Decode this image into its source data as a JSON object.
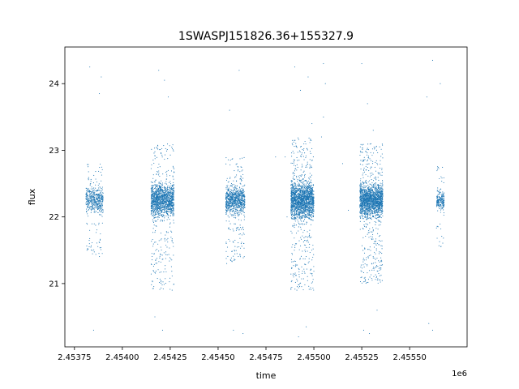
{
  "chart_data": {
    "type": "scatter",
    "title": "1SWASPJ151826.36+155327.9",
    "xlabel": "time",
    "ylabel": "flux",
    "x_offset_label": "1e6",
    "xlim": [
      2.4537,
      2.4558
    ],
    "ylim": [
      20.05,
      24.55
    ],
    "x_ticks": [
      2.45375,
      2.454,
      2.45425,
      2.4545,
      2.45475,
      2.455,
      2.45525,
      2.4555
    ],
    "x_tick_labels": [
      "2.45375",
      "2.45400",
      "2.45425",
      "2.45450",
      "2.45475",
      "2.45500",
      "2.45525",
      "2.45550"
    ],
    "y_ticks": [
      21,
      22,
      23,
      24
    ],
    "y_tick_labels": [
      "21",
      "22",
      "23",
      "24"
    ],
    "grid": false,
    "marker_color": "#1f77b4",
    "series": [
      {
        "clusters": [
          {
            "x_range": [
              2.45381,
              2.4539
            ],
            "core": [
              21.95,
              22.55
            ],
            "wide": [
              21.4,
              22.8
            ],
            "n": 520
          },
          {
            "x_range": [
              2.45415,
              2.45427
            ],
            "core": [
              21.85,
              22.65
            ],
            "wide": [
              20.9,
              23.1
            ],
            "n": 1500
          },
          {
            "x_range": [
              2.45454,
              2.45464
            ],
            "core": [
              21.9,
              22.6
            ],
            "wide": [
              21.3,
              22.9
            ],
            "n": 900
          },
          {
            "x_range": [
              2.45488,
              2.455
            ],
            "core": [
              21.8,
              22.7
            ],
            "wide": [
              20.9,
              23.2
            ],
            "n": 1900
          },
          {
            "x_range": [
              2.45524,
              2.45536
            ],
            "core": [
              21.85,
              22.65
            ],
            "wide": [
              21.0,
              23.1
            ],
            "n": 1900
          },
          {
            "x_range": [
              2.45564,
              2.45568
            ],
            "core": [
              22.0,
              22.5
            ],
            "wide": [
              21.5,
              22.8
            ],
            "n": 230
          }
        ],
        "outliers": [
          [
            2.45383,
            24.25
          ],
          [
            2.45388,
            23.85
          ],
          [
            2.45389,
            24.1
          ],
          [
            2.45385,
            20.3
          ],
          [
            2.45419,
            24.2
          ],
          [
            2.45422,
            24.05
          ],
          [
            2.45424,
            23.8
          ],
          [
            2.45417,
            20.5
          ],
          [
            2.45421,
            20.3
          ],
          [
            2.45426,
            20.9
          ],
          [
            2.45461,
            24.2
          ],
          [
            2.45456,
            23.6
          ],
          [
            2.45458,
            20.3
          ],
          [
            2.45463,
            20.25
          ],
          [
            2.4549,
            24.25
          ],
          [
            2.45493,
            23.9
          ],
          [
            2.45497,
            24.1
          ],
          [
            2.45499,
            23.4
          ],
          [
            2.45492,
            20.2
          ],
          [
            2.45496,
            20.35
          ],
          [
            2.45505,
            24.3
          ],
          [
            2.45506,
            24.0
          ],
          [
            2.45505,
            23.5
          ],
          [
            2.45504,
            23.2
          ],
          [
            2.45525,
            24.3
          ],
          [
            2.45528,
            23.7
          ],
          [
            2.45531,
            23.3
          ],
          [
            2.45526,
            20.3
          ],
          [
            2.45529,
            20.25
          ],
          [
            2.45533,
            20.6
          ],
          [
            2.45559,
            23.8
          ],
          [
            2.45562,
            24.35
          ],
          [
            2.45566,
            24.0
          ],
          [
            2.4556,
            20.4
          ],
          [
            2.45562,
            20.3
          ],
          [
            2.45485,
            22.9
          ],
          [
            2.45486,
            22.0
          ],
          [
            2.4548,
            22.9
          ],
          [
            2.45515,
            22.8
          ],
          [
            2.45518,
            22.1
          ]
        ]
      }
    ]
  }
}
